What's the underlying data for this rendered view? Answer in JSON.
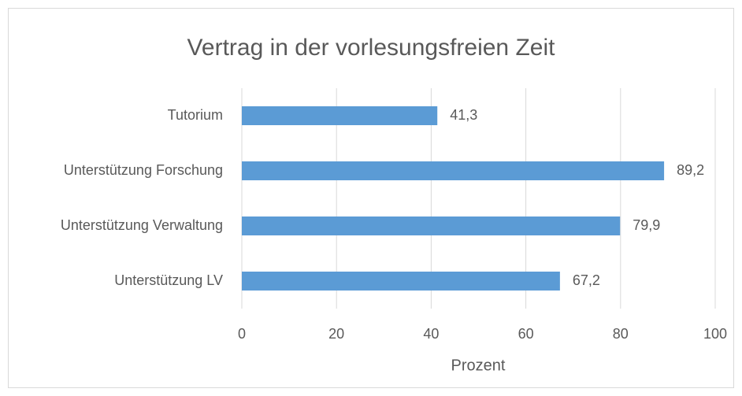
{
  "chart_data": {
    "type": "bar",
    "orientation": "horizontal",
    "title": "Vertrag in der vorlesungsfreien Zeit",
    "xlabel": "Prozent",
    "categories": [
      "Tutorium",
      "Unterstützung Forschung",
      "Unterstützung Verwaltung",
      "Unterstützung LV"
    ],
    "values": [
      41.3,
      89.2,
      79.9,
      67.2
    ],
    "value_labels": [
      "41,3",
      "89,2",
      "79,9",
      "67,2"
    ],
    "color": "#5b9bd5",
    "xlim": [
      0,
      100
    ],
    "xticks": [
      0,
      20,
      40,
      60,
      80,
      100
    ],
    "grid": true
  }
}
